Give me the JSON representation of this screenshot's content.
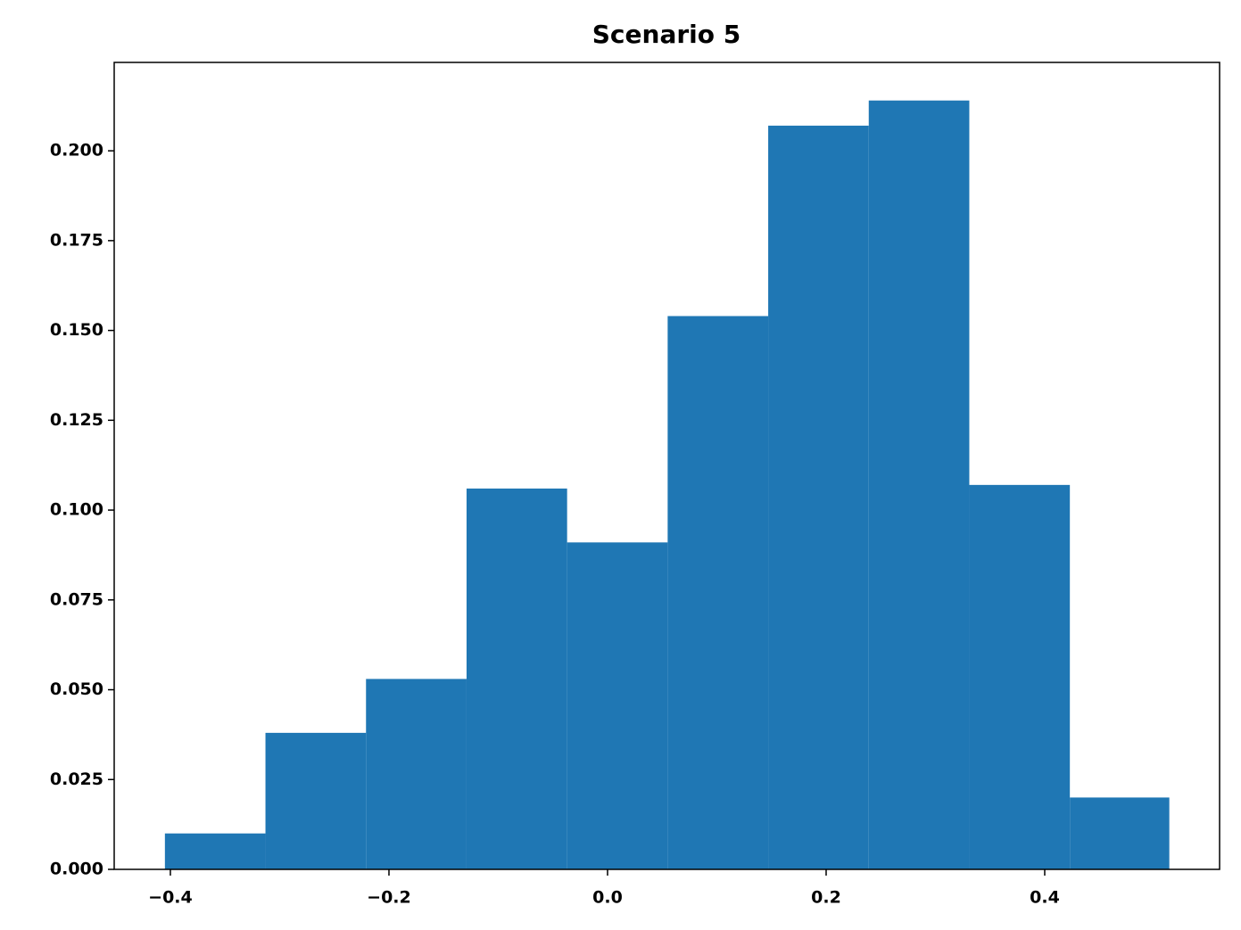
{
  "chart_data": {
    "type": "histogram",
    "title": "Scenario 5",
    "bins": [
      -0.405,
      -0.313,
      -0.221,
      -0.129,
      -0.037,
      0.055,
      0.147,
      0.239,
      0.331,
      0.423,
      0.514
    ],
    "values": [
      0.01,
      0.038,
      0.053,
      0.106,
      0.091,
      0.154,
      0.207,
      0.214,
      0.107,
      0.02
    ],
    "color": "#1f77b4",
    "xlim": [
      -0.4514,
      0.56
    ],
    "ylim": [
      0,
      0.2246
    ],
    "xticks": [
      {
        "value": -0.4,
        "label": "−0.4"
      },
      {
        "value": -0.2,
        "label": "−0.2"
      },
      {
        "value": 0,
        "label": "0.0"
      },
      0.2,
      0.4
    ],
    "yticks": [
      {
        "value": 0,
        "label": "0.000"
      },
      0.025,
      {
        "value": 0.05,
        "label": "0.050"
      },
      0.075,
      {
        "value": 0.1,
        "label": "0.100"
      },
      0.125,
      {
        "value": 0.15,
        "label": "0.150"
      },
      0.175,
      {
        "value": 0.2,
        "label": "0.200"
      }
    ],
    "grid": false
  }
}
